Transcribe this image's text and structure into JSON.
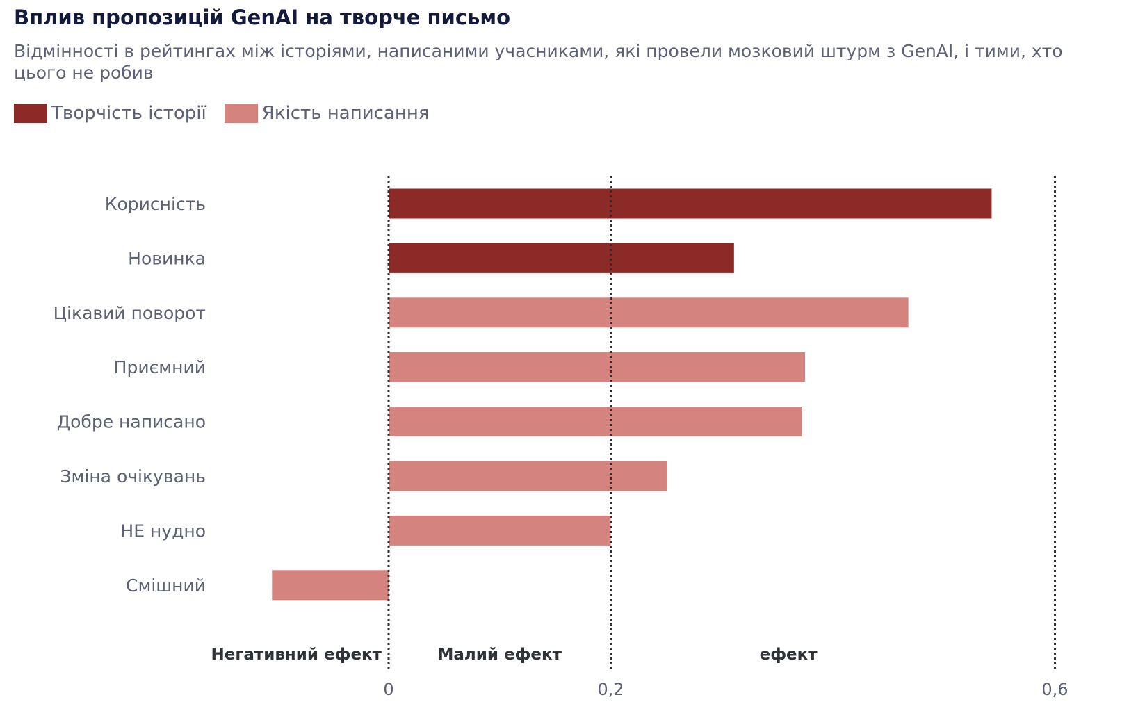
{
  "title": "Вплив пропозицій GenAI на творче письмо",
  "subtitle": "Відмінності в рейтингах між історіями, написаними учасниками, які провели мозковий штурм з GenAI, і тими, хто цього не робив",
  "legend": [
    {
      "label": "Творчість історії",
      "color": "#8b2a26"
    },
    {
      "label": "Якість написання",
      "color": "#d4837e"
    }
  ],
  "chart_data": {
    "type": "bar",
    "orientation": "horizontal",
    "title": "Вплив пропозицій GenAI на творче письмо",
    "xlim": [
      -0.105,
      0.6
    ],
    "ticks": [
      {
        "value": 0,
        "label": "0"
      },
      {
        "value": 0.2,
        "label": "0,2"
      },
      {
        "value": 0.6,
        "label": "0,6"
      }
    ],
    "reference_lines": [
      0,
      0.2,
      0.6
    ],
    "region_labels": [
      {
        "label": "Негативний ефект",
        "anchor_value": 0,
        "align": "end"
      },
      {
        "label": "Малий ефект",
        "anchor_value": 0.1,
        "align": "middle"
      },
      {
        "label": "ефект",
        "anchor_value": 0.36,
        "align": "middle"
      }
    ],
    "bars": [
      {
        "category": "Корисність",
        "value": 0.543,
        "series": "Творчість історії"
      },
      {
        "category": "Новинка",
        "value": 0.311,
        "series": "Творчість історії"
      },
      {
        "category": "Цікавий поворот",
        "value": 0.468,
        "series": "Якість написання"
      },
      {
        "category": "Приємний",
        "value": 0.375,
        "series": "Якість написання"
      },
      {
        "category": "Добре написано",
        "value": 0.372,
        "series": "Якість написання"
      },
      {
        "category": "Зміна очікувань",
        "value": 0.251,
        "series": "Якість написання"
      },
      {
        "category": "НЕ нудно",
        "value": 0.2,
        "series": "Якість написання"
      },
      {
        "category": "Смішний",
        "value": -0.105,
        "series": "Якість написання"
      }
    ]
  }
}
